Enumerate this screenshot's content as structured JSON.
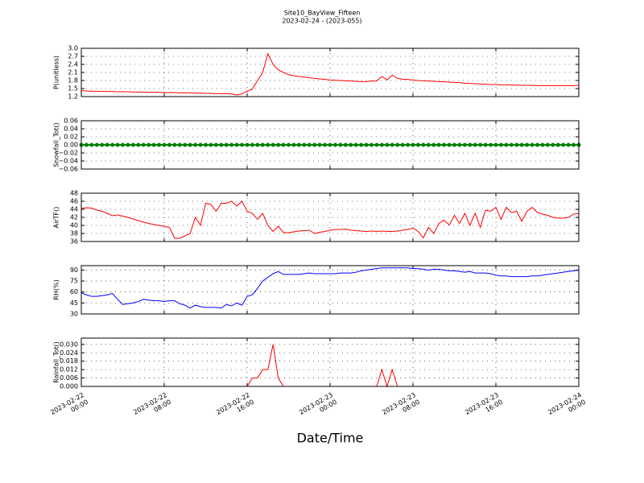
{
  "chart_data": {
    "type": "line",
    "title": "Site10_BayView_Fifteen",
    "subtitle": "2023-02-24 - (2023-055)",
    "xlabel": "Date/Time",
    "grid": true,
    "xlim": [
      "2023-02-22 00:00",
      "2023-02-24 00:00"
    ],
    "xticks": [
      {
        "value": "2023-02-22 00:00",
        "label": "2023-02-22\n00:00"
      },
      {
        "value": "2023-02-22 08:00",
        "label": "2023-02-22\n08:00"
      },
      {
        "value": "2023-02-22 16:00",
        "label": "2023-02-22\n16:00"
      },
      {
        "value": "2023-02-23 00:00",
        "label": "2023-02-23\n00:00"
      },
      {
        "value": "2023-02-23 08:00",
        "label": "2023-02-23\n08:00"
      },
      {
        "value": "2023-02-23 16:00",
        "label": "2023-02-23\n16:00"
      },
      {
        "value": "2023-02-24 00:00",
        "label": "2023-02-24\n00:00"
      }
    ],
    "x": [
      "2023-02-22 00:00",
      "2023-02-22 00:30",
      "2023-02-22 01:00",
      "2023-02-22 01:30",
      "2023-02-22 02:00",
      "2023-02-22 02:30",
      "2023-02-22 03:00",
      "2023-02-22 03:30",
      "2023-02-22 04:00",
      "2023-02-22 04:30",
      "2023-02-22 05:00",
      "2023-02-22 05:30",
      "2023-02-22 06:00",
      "2023-02-22 06:30",
      "2023-02-22 07:00",
      "2023-02-22 07:30",
      "2023-02-22 08:00",
      "2023-02-22 08:30",
      "2023-02-22 09:00",
      "2023-02-22 09:30",
      "2023-02-22 10:00",
      "2023-02-22 10:30",
      "2023-02-22 11:00",
      "2023-02-22 11:30",
      "2023-02-22 12:00",
      "2023-02-22 12:30",
      "2023-02-22 13:00",
      "2023-02-22 13:30",
      "2023-02-22 14:00",
      "2023-02-22 14:30",
      "2023-02-22 15:00",
      "2023-02-22 15:30",
      "2023-02-22 16:00",
      "2023-02-22 16:30",
      "2023-02-22 17:00",
      "2023-02-22 17:30",
      "2023-02-22 18:00",
      "2023-02-22 18:30",
      "2023-02-22 19:00",
      "2023-02-22 19:30",
      "2023-02-22 20:00",
      "2023-02-22 20:30",
      "2023-02-22 21:00",
      "2023-02-22 21:30",
      "2023-02-22 22:00",
      "2023-02-22 22:30",
      "2023-02-22 23:00",
      "2023-02-22 23:30",
      "2023-02-23 00:00",
      "2023-02-23 00:30",
      "2023-02-23 01:00",
      "2023-02-23 01:30",
      "2023-02-23 02:00",
      "2023-02-23 02:30",
      "2023-02-23 03:00",
      "2023-02-23 03:30",
      "2023-02-23 04:00",
      "2023-02-23 04:30",
      "2023-02-23 05:00",
      "2023-02-23 05:30",
      "2023-02-23 06:00",
      "2023-02-23 06:30",
      "2023-02-23 07:00",
      "2023-02-23 07:30",
      "2023-02-23 08:00",
      "2023-02-23 08:30",
      "2023-02-23 09:00",
      "2023-02-23 09:30",
      "2023-02-23 10:00",
      "2023-02-23 10:30",
      "2023-02-23 11:00",
      "2023-02-23 11:30",
      "2023-02-23 12:00",
      "2023-02-23 12:30",
      "2023-02-23 13:00",
      "2023-02-23 13:30",
      "2023-02-23 14:00",
      "2023-02-23 14:30",
      "2023-02-23 15:00",
      "2023-02-23 15:30",
      "2023-02-23 16:00",
      "2023-02-23 16:30",
      "2023-02-23 17:00",
      "2023-02-23 17:30",
      "2023-02-23 18:00",
      "2023-02-23 18:30",
      "2023-02-23 19:00",
      "2023-02-23 19:30",
      "2023-02-23 20:00",
      "2023-02-23 20:30",
      "2023-02-23 21:00",
      "2023-02-23 21:30",
      "2023-02-23 22:00",
      "2023-02-23 22:30",
      "2023-02-23 23:00",
      "2023-02-23 23:30",
      "2023-02-24 00:00"
    ],
    "panels": [
      {
        "ylabel": "P(unitless)",
        "ylim": [
          1.2,
          3.0
        ],
        "yticks": [
          1.2,
          1.5,
          1.8,
          2.1,
          2.4,
          2.7,
          {
            "value": 3,
            "label": "3.0"
          }
        ],
        "series": [
          {
            "color": "#ff0000",
            "values": [
              1.42,
              1.41,
              1.4,
              1.4,
              1.39,
              1.39,
              1.39,
              1.38,
              1.38,
              1.38,
              1.37,
              1.37,
              1.37,
              1.36,
              1.36,
              1.36,
              1.35,
              1.35,
              1.35,
              1.34,
              1.34,
              1.34,
              1.33,
              1.33,
              1.32,
              1.32,
              1.31,
              1.31,
              1.31,
              1.3,
              1.26,
              1.3,
              1.4,
              1.48,
              1.8,
              2.1,
              2.8,
              2.4,
              2.2,
              2.1,
              2.02,
              1.98,
              1.95,
              1.93,
              1.9,
              1.88,
              1.86,
              1.84,
              1.82,
              1.81,
              1.8,
              1.79,
              1.78,
              1.77,
              1.76,
              1.76,
              1.78,
              1.78,
              1.95,
              1.82,
              2.0,
              1.88,
              1.85,
              1.84,
              1.82,
              1.8,
              1.79,
              1.78,
              1.77,
              1.76,
              1.75,
              1.74,
              1.73,
              1.72,
              1.7,
              1.69,
              1.68,
              1.67,
              1.66,
              1.65,
              1.65,
              1.64,
              1.64,
              1.63,
              1.63,
              1.62,
              1.62,
              1.62,
              1.61,
              1.61,
              1.61,
              1.61,
              1.61,
              1.61,
              1.61,
              1.61,
              1.62
            ]
          }
        ]
      },
      {
        "ylabel": "Snowfall_Tot()",
        "ylim": [
          -0.06,
          0.06
        ],
        "yticks": [
          {
            "value": -0.06,
            "label": "−0.06"
          },
          {
            "value": -0.04,
            "label": "−0.04"
          },
          {
            "value": -0.02,
            "label": "−0.02"
          },
          {
            "value": 0,
            "label": "0.00"
          },
          0.02,
          0.04,
          0.06
        ],
        "series": [
          {
            "color": "#008000",
            "marker": "circle",
            "values": [
              0,
              0,
              0,
              0,
              0,
              0,
              0,
              0,
              0,
              0,
              0,
              0,
              0,
              0,
              0,
              0,
              0,
              0,
              0,
              0,
              0,
              0,
              0,
              0,
              0,
              0,
              0,
              0,
              0,
              0,
              0,
              0,
              0,
              0,
              0,
              0,
              0,
              0,
              0,
              0,
              0,
              0,
              0,
              0,
              0,
              0,
              0,
              0,
              0,
              0,
              0,
              0,
              0,
              0,
              0,
              0,
              0,
              0,
              0,
              0,
              0,
              0,
              0,
              0,
              0,
              0,
              0,
              0,
              0,
              0,
              0,
              0,
              0,
              0,
              0,
              0,
              0,
              0,
              0,
              0,
              0,
              0,
              0,
              0,
              0,
              0,
              0,
              0,
              0,
              0,
              0,
              0,
              0,
              0,
              0,
              0,
              0
            ]
          }
        ]
      },
      {
        "ylabel": "AirTF()",
        "ylim": [
          36,
          48
        ],
        "yticks": [
          36,
          38,
          40,
          42,
          44,
          46,
          48
        ],
        "series": [
          {
            "color": "#ff0000",
            "values": [
              44.2,
              44.4,
              44.3,
              43.8,
              43.5,
              43.0,
              42.4,
              42.6,
              42.3,
              42.0,
              41.6,
              41.2,
              40.8,
              40.5,
              40.2,
              40.0,
              39.8,
              39.5,
              36.8,
              36.8,
              37.4,
              38.0,
              42.0,
              40.0,
              45.5,
              45.2,
              43.5,
              45.5,
              45.5,
              46.0,
              44.8,
              46.0,
              43.5,
              43.0,
              41.5,
              43.0,
              40.0,
              38.5,
              39.8,
              38.2,
              38.2,
              38.4,
              38.6,
              38.7,
              38.8,
              38.0,
              38.3,
              38.5,
              38.8,
              39.0,
              39.0,
              39.1,
              38.8,
              38.7,
              38.6,
              38.5,
              38.6,
              38.5,
              38.6,
              38.5,
              38.5,
              38.6,
              38.8,
              39.0,
              39.3,
              38.5,
              36.9,
              39.5,
              38.0,
              40.5,
              41.3,
              40.1,
              42.5,
              40.5,
              43.0,
              40.0,
              43.0,
              39.5,
              43.8,
              43.5,
              44.5,
              41.5,
              44.5,
              43.2,
              43.5,
              41.0,
              43.5,
              44.5,
              43.2,
              42.8,
              42.5,
              42.0,
              41.8,
              41.8,
              42.0,
              42.8,
              43.0
            ]
          }
        ]
      },
      {
        "ylabel": "RH(%)",
        "ylim": [
          30,
          96
        ],
        "yticks": [
          30,
          45,
          60,
          75,
          90
        ],
        "series": [
          {
            "color": "#0000ff",
            "values": [
              59,
              56,
              54,
              54,
              55,
              56,
              58,
              50,
              43,
              44,
              45,
              47,
              50,
              49,
              48,
              48,
              47,
              48,
              48,
              44,
              42,
              38,
              42,
              40,
              39,
              39,
              39,
              38,
              43,
              41,
              45,
              42,
              54,
              56,
              65,
              75,
              80,
              85,
              88,
              84,
              84,
              84,
              84,
              85,
              86,
              85,
              85,
              85,
              85,
              85,
              86,
              86,
              86,
              87,
              89,
              90,
              91,
              92,
              93,
              93,
              93,
              93,
              93,
              93,
              92,
              92,
              91,
              90,
              91,
              91,
              90,
              89,
              89,
              88,
              87,
              88,
              86,
              86,
              86,
              85,
              83,
              82,
              82,
              81,
              81,
              81,
              81,
              82,
              82,
              83,
              84,
              85,
              86,
              87,
              88,
              89,
              90
            ]
          }
        ]
      },
      {
        "ylabel": "Rainfall_Tot()",
        "ylim": [
          0,
          0.0345
        ],
        "yticks": [
          {
            "value": 0,
            "label": "0.000"
          },
          0.006,
          0.012,
          0.018,
          0.024,
          {
            "value": 0.03,
            "label": "0.030"
          }
        ],
        "series": [
          {
            "color": "#ff0000",
            "values": [
              0,
              0,
              0,
              0,
              0,
              0,
              0,
              0,
              0,
              0,
              0,
              0,
              0,
              0,
              0,
              0,
              0,
              0,
              0,
              0,
              0,
              0,
              0,
              0,
              0,
              0,
              0,
              0,
              0,
              0,
              0,
              0,
              0,
              0.006,
              0.006,
              0.012,
              0.012,
              0.03,
              0.006,
              0,
              0,
              0,
              0,
              0,
              0,
              0,
              0,
              0,
              0,
              0,
              0,
              0,
              0,
              0,
              0,
              0,
              0,
              0,
              0.012,
              0,
              0.012,
              0,
              0,
              0,
              0,
              0,
              0,
              0,
              0,
              0,
              0,
              0,
              0,
              0,
              0,
              0,
              0,
              0,
              0,
              0,
              0,
              0,
              0,
              0,
              0,
              0,
              0,
              0,
              0,
              0,
              0,
              0,
              0,
              0,
              0,
              0,
              0
            ]
          }
        ]
      }
    ]
  }
}
